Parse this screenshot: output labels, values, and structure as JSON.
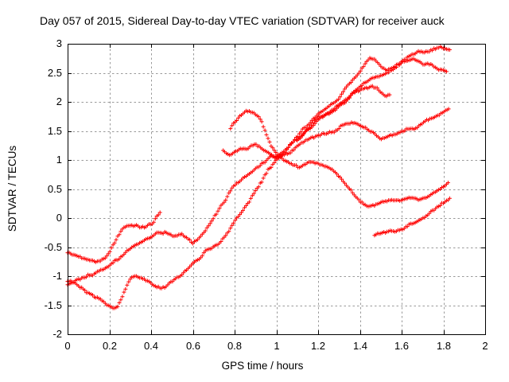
{
  "title": "Day 057 of 2015, Sidereal Day-to-day VTEC variation (SDTVAR) for receiver auck",
  "chart_data": {
    "type": "scatter",
    "marker": "plus",
    "marker_color": "#ff0000",
    "grid": "dashed-gray",
    "grid_color": "#9a9a9a",
    "axis_color": "#000000",
    "xlabel": "GPS time / hours",
    "ylabel": "SDTVAR / TECUs",
    "xlim": [
      0,
      2
    ],
    "ylim": [
      -2,
      3
    ],
    "xticks": [
      [
        0,
        "0"
      ],
      [
        0.2,
        "0.2"
      ],
      [
        0.4,
        "0.4"
      ],
      [
        0.6,
        "0.6"
      ],
      [
        0.8,
        "0.8"
      ],
      [
        1,
        "1"
      ],
      [
        1.2,
        "1.2"
      ],
      [
        1.4,
        "1.4"
      ],
      [
        1.6,
        "1.6"
      ],
      [
        1.8,
        "1.8"
      ],
      [
        2,
        "2"
      ]
    ],
    "yticks": [
      [
        3,
        "3"
      ],
      [
        2.5,
        "2.5"
      ],
      [
        2,
        "2"
      ],
      [
        1.5,
        "1.5"
      ],
      [
        1,
        "1"
      ],
      [
        0.5,
        "0.5"
      ],
      [
        0,
        "0"
      ],
      [
        -0.5,
        "-0.5"
      ],
      [
        -1,
        "-1"
      ],
      [
        -1.5,
        "-1.5"
      ],
      [
        -2,
        "-2"
      ]
    ],
    "legend": "none",
    "series": [
      {
        "name": "trace-1",
        "anchors": [
          [
            0,
            -0.6
          ],
          [
            0.03,
            -0.64
          ],
          [
            0.06,
            -0.67
          ],
          [
            0.09,
            -0.7
          ],
          [
            0.13,
            -0.71
          ],
          [
            0.16,
            -0.69
          ],
          [
            0.18,
            -0.64
          ],
          [
            0.2,
            -0.56
          ],
          [
            0.22,
            -0.45
          ],
          [
            0.24,
            -0.31
          ],
          [
            0.26,
            -0.19
          ],
          [
            0.285,
            -0.13
          ],
          [
            0.31,
            -0.1
          ],
          [
            0.335,
            -0.13
          ],
          [
            0.36,
            -0.16
          ],
          [
            0.385,
            -0.14
          ],
          [
            0.405,
            -0.11
          ],
          [
            0.42,
            -0.02
          ],
          [
            0.43,
            0.05
          ],
          [
            0.445,
            0.1
          ]
        ]
      },
      {
        "name": "trace-2",
        "anchors": [
          [
            0,
            -1.16
          ],
          [
            0.05,
            -1.06
          ],
          [
            0.1,
            -0.97
          ],
          [
            0.15,
            -0.88
          ],
          [
            0.2,
            -0.78
          ],
          [
            0.23,
            -0.71
          ],
          [
            0.26,
            -0.61
          ],
          [
            0.3,
            -0.5
          ],
          [
            0.34,
            -0.4
          ],
          [
            0.38,
            -0.32
          ],
          [
            0.41,
            -0.28
          ],
          [
            0.44,
            -0.23
          ],
          [
            0.465,
            -0.21
          ],
          [
            0.49,
            -0.27
          ],
          [
            0.52,
            -0.3
          ],
          [
            0.545,
            -0.26
          ],
          [
            0.57,
            -0.33
          ],
          [
            0.6,
            -0.44
          ],
          [
            0.625,
            -0.39
          ],
          [
            0.65,
            -0.29
          ],
          [
            0.675,
            -0.14
          ],
          [
            0.7,
            -0.02
          ],
          [
            0.72,
            0.08
          ],
          [
            0.75,
            0.26
          ],
          [
            0.79,
            0.49
          ],
          [
            0.83,
            0.63
          ],
          [
            0.87,
            0.77
          ],
          [
            0.91,
            0.89
          ],
          [
            0.95,
            0.98
          ],
          [
            1.0,
            1.08
          ],
          [
            1.05,
            1.23
          ],
          [
            1.1,
            1.43
          ],
          [
            1.15,
            1.63
          ],
          [
            1.2,
            1.81
          ],
          [
            1.25,
            1.93
          ],
          [
            1.3,
            2.05
          ],
          [
            1.36,
            2.32
          ],
          [
            1.41,
            2.57
          ],
          [
            1.445,
            2.75
          ],
          [
            1.47,
            2.72
          ],
          [
            1.5,
            2.62
          ],
          [
            1.53,
            2.55
          ],
          [
            1.56,
            2.57
          ],
          [
            1.6,
            2.7
          ],
          [
            1.64,
            2.78
          ],
          [
            1.68,
            2.83
          ],
          [
            1.72,
            2.86
          ],
          [
            1.76,
            2.91
          ],
          [
            1.785,
            2.95
          ],
          [
            1.81,
            2.91
          ],
          [
            1.835,
            2.87
          ]
        ]
      },
      {
        "name": "trace-3",
        "anchors": [
          [
            0,
            -1.1
          ],
          [
            0.04,
            -1.17
          ],
          [
            0.08,
            -1.27
          ],
          [
            0.12,
            -1.34
          ],
          [
            0.16,
            -1.45
          ],
          [
            0.19,
            -1.53
          ],
          [
            0.22,
            -1.6
          ],
          [
            0.24,
            -1.57
          ],
          [
            0.26,
            -1.4
          ],
          [
            0.28,
            -1.22
          ],
          [
            0.3,
            -1.08
          ],
          [
            0.32,
            -1.04
          ],
          [
            0.34,
            -1.06
          ],
          [
            0.36,
            -1.09
          ],
          [
            0.38,
            -1.11
          ],
          [
            0.4,
            -1.17
          ],
          [
            0.42,
            -1.22
          ],
          [
            0.445,
            -1.24
          ],
          [
            0.47,
            -1.2
          ],
          [
            0.5,
            -1.13
          ],
          [
            0.53,
            -1.04
          ],
          [
            0.57,
            -0.94
          ],
          [
            0.61,
            -0.79
          ],
          [
            0.65,
            -0.64
          ],
          [
            0.69,
            -0.52
          ],
          [
            0.72,
            -0.44
          ],
          [
            0.76,
            -0.26
          ],
          [
            0.8,
            -0.05
          ],
          [
            0.84,
            0.15
          ],
          [
            0.87,
            0.31
          ],
          [
            0.9,
            0.47
          ],
          [
            0.93,
            0.62
          ],
          [
            0.96,
            0.8
          ],
          [
            1.0,
            0.97
          ],
          [
            1.04,
            1.08
          ],
          [
            1.067,
            1.23
          ],
          [
            1.1,
            1.33
          ],
          [
            1.14,
            1.48
          ],
          [
            1.18,
            1.6
          ],
          [
            1.21,
            1.68
          ],
          [
            1.24,
            1.74
          ],
          [
            1.28,
            1.81
          ],
          [
            1.33,
            1.99
          ],
          [
            1.38,
            2.16
          ],
          [
            1.43,
            2.31
          ],
          [
            1.48,
            2.43
          ],
          [
            1.53,
            2.51
          ],
          [
            1.57,
            2.58
          ],
          [
            1.61,
            2.68
          ],
          [
            1.65,
            2.75
          ],
          [
            1.68,
            2.72
          ],
          [
            1.72,
            2.67
          ],
          [
            1.76,
            2.62
          ],
          [
            1.79,
            2.58
          ],
          [
            1.82,
            2.57
          ]
        ]
      },
      {
        "name": "trace-4",
        "anchors": [
          [
            0.745,
            1.16
          ],
          [
            0.76,
            1.12
          ],
          [
            0.78,
            1.09
          ],
          [
            0.8,
            1.1
          ],
          [
            0.82,
            1.14
          ],
          [
            0.84,
            1.15
          ],
          [
            0.86,
            1.17
          ],
          [
            0.88,
            1.21
          ],
          [
            0.9,
            1.23
          ],
          [
            0.92,
            1.19
          ],
          [
            0.94,
            1.13
          ],
          [
            0.96,
            1.08
          ],
          [
            0.98,
            1.04
          ],
          [
            1.0,
            1.01
          ],
          [
            1.03,
            1.04
          ],
          [
            1.067,
            1.11
          ],
          [
            1.1,
            1.2
          ],
          [
            1.13,
            1.27
          ],
          [
            1.16,
            1.33
          ],
          [
            1.19,
            1.38
          ],
          [
            1.22,
            1.42
          ],
          [
            1.25,
            1.44
          ],
          [
            1.28,
            1.46
          ],
          [
            1.31,
            1.55
          ],
          [
            1.34,
            1.62
          ],
          [
            1.36,
            1.65
          ],
          [
            1.38,
            1.62
          ],
          [
            1.41,
            1.55
          ],
          [
            1.44,
            1.48
          ],
          [
            1.47,
            1.43
          ],
          [
            1.5,
            1.4
          ],
          [
            1.53,
            1.44
          ],
          [
            1.56,
            1.48
          ],
          [
            1.6,
            1.51
          ],
          [
            1.64,
            1.53
          ],
          [
            1.68,
            1.57
          ],
          [
            1.72,
            1.64
          ],
          [
            1.76,
            1.7
          ],
          [
            1.79,
            1.76
          ],
          [
            1.81,
            1.81
          ],
          [
            1.83,
            1.85
          ]
        ]
      },
      {
        "name": "trace-5",
        "anchors": [
          [
            0.78,
            1.55
          ],
          [
            0.8,
            1.66
          ],
          [
            0.83,
            1.78
          ],
          [
            0.855,
            1.87
          ],
          [
            0.87,
            1.88
          ],
          [
            0.89,
            1.84
          ],
          [
            0.91,
            1.76
          ],
          [
            0.93,
            1.63
          ],
          [
            0.95,
            1.42
          ],
          [
            0.97,
            1.24
          ],
          [
            0.99,
            1.12
          ],
          [
            1.01,
            1.03
          ],
          [
            1.04,
            0.95
          ],
          [
            1.07,
            0.89
          ],
          [
            1.1,
            0.85
          ],
          [
            1.13,
            0.87
          ],
          [
            1.16,
            0.92
          ],
          [
            1.19,
            0.9
          ],
          [
            1.22,
            0.87
          ],
          [
            1.25,
            0.83
          ],
          [
            1.27,
            0.78
          ],
          [
            1.3,
            0.68
          ],
          [
            1.33,
            0.55
          ],
          [
            1.36,
            0.42
          ],
          [
            1.39,
            0.28
          ],
          [
            1.42,
            0.2
          ],
          [
            1.45,
            0.17
          ],
          [
            1.48,
            0.19
          ],
          [
            1.51,
            0.24
          ],
          [
            1.54,
            0.27
          ],
          [
            1.58,
            0.3
          ],
          [
            1.62,
            0.32
          ],
          [
            1.65,
            0.32
          ],
          [
            1.68,
            0.28
          ],
          [
            1.71,
            0.3
          ],
          [
            1.74,
            0.36
          ],
          [
            1.77,
            0.42
          ],
          [
            1.79,
            0.47
          ],
          [
            1.81,
            0.52
          ],
          [
            1.825,
            0.58
          ]
        ]
      },
      {
        "name": "trace-6",
        "anchors": [
          [
            1.1,
            1.34
          ],
          [
            1.14,
            1.52
          ],
          [
            1.18,
            1.68
          ],
          [
            1.22,
            1.78
          ],
          [
            1.26,
            1.88
          ],
          [
            1.3,
            1.97
          ],
          [
            1.34,
            2.07
          ],
          [
            1.38,
            2.17
          ],
          [
            1.42,
            2.24
          ],
          [
            1.455,
            2.27
          ],
          [
            1.48,
            2.25
          ],
          [
            1.5,
            2.19
          ],
          [
            1.52,
            2.13
          ],
          [
            1.545,
            2.11
          ]
        ]
      },
      {
        "name": "trace-7",
        "anchors": [
          [
            1.47,
            -0.31
          ],
          [
            1.5,
            -0.27
          ],
          [
            1.53,
            -0.23
          ],
          [
            1.56,
            -0.21
          ],
          [
            1.585,
            -0.2
          ],
          [
            1.61,
            -0.15
          ],
          [
            1.64,
            -0.08
          ],
          [
            1.67,
            -0.02
          ],
          [
            1.7,
            0.04
          ],
          [
            1.73,
            0.1
          ],
          [
            1.755,
            0.16
          ],
          [
            1.78,
            0.24
          ],
          [
            1.8,
            0.3
          ],
          [
            1.815,
            0.34
          ],
          [
            1.83,
            0.38
          ]
        ]
      }
    ]
  }
}
